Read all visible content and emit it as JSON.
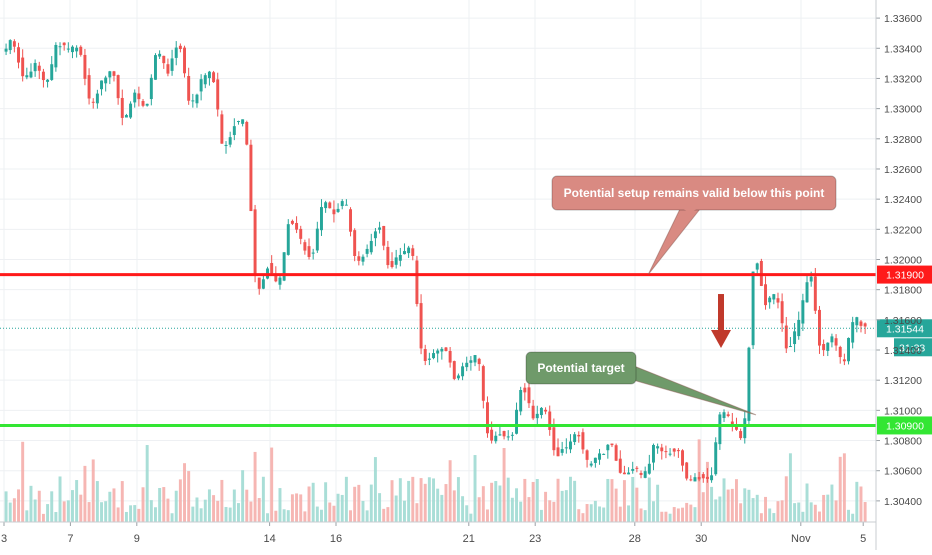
{
  "chart_data": {
    "type": "candlestick",
    "title": "",
    "xlabel": "",
    "ylabel": "",
    "ylim": [
      1.3026,
      1.3372
    ],
    "grid": true,
    "price_axis_side": "right",
    "y_ticks": [
      "1.33600",
      "1.33400",
      "1.33200",
      "1.33000",
      "1.32800",
      "1.32600",
      "1.32400",
      "1.32200",
      "1.32000",
      "1.31800",
      "1.31600",
      "1.31400",
      "1.31200",
      "1.31000",
      "1.30800",
      "1.30600",
      "1.30400"
    ],
    "x_ticks": [
      "3",
      "7",
      "9",
      "14",
      "16",
      "21",
      "23",
      "28",
      "30",
      "Nov",
      "5"
    ],
    "colors": {
      "up": "#26a69a",
      "down": "#ef5350",
      "up_volume": "#9ad8d0",
      "down_volume": "#f4a9a6",
      "resistance": "#ff1a1a",
      "support": "#33e633",
      "setup_note": "#d98a82",
      "target_note": "#6f9a6a",
      "arrow": "#c0392b",
      "last_price": "#26a69a"
    },
    "levels": [
      {
        "price": 1.319,
        "label": "1.31900",
        "color": "#ff1a1a"
      },
      {
        "price": 1.309,
        "label": "1.30900",
        "color": "#33e633"
      }
    ],
    "last_price": {
      "price": 1.31544,
      "label": "1.31544",
      "countdown": "31:33"
    },
    "annotations": [
      {
        "text": "Potential setup remains valid below this point",
        "pointer": {
          "date_index": 16,
          "price": 1.319
        }
      },
      {
        "text": "Potential target",
        "pointer": {
          "date_index": 22.5,
          "price": 1.3097
        }
      }
    ],
    "down_arrow": {
      "date_index": 21.9,
      "price": 1.3138
    },
    "days": [
      {
        "label": "3",
        "open": 1.3336,
        "high": 1.3346,
        "low": 1.3318,
        "close": 1.333
      },
      {
        "label": "",
        "open": 1.333,
        "high": 1.3344,
        "low": 1.3314,
        "close": 1.3338
      },
      {
        "label": "7",
        "open": 1.3338,
        "high": 1.3342,
        "low": 1.33,
        "close": 1.3318
      },
      {
        "label": "",
        "open": 1.3318,
        "high": 1.3325,
        "low": 1.3289,
        "close": 1.331
      },
      {
        "label": "9",
        "open": 1.331,
        "high": 1.334,
        "low": 1.33,
        "close": 1.3325
      },
      {
        "label": "",
        "open": 1.3325,
        "high": 1.3346,
        "low": 1.33,
        "close": 1.3318
      },
      {
        "label": "",
        "open": 1.3318,
        "high": 1.3325,
        "low": 1.327,
        "close": 1.329
      },
      {
        "label": "",
        "open": 1.329,
        "high": 1.3292,
        "low": 1.3175,
        "close": 1.3196
      },
      {
        "label": "14",
        "open": 1.3196,
        "high": 1.323,
        "low": 1.318,
        "close": 1.3212
      },
      {
        "label": "",
        "open": 1.3212,
        "high": 1.324,
        "low": 1.32,
        "close": 1.323
      },
      {
        "label": "16",
        "open": 1.323,
        "high": 1.324,
        "low": 1.3196,
        "close": 1.3206
      },
      {
        "label": "",
        "open": 1.3206,
        "high": 1.3225,
        "low": 1.3194,
        "close": 1.3203
      },
      {
        "label": "",
        "open": 1.3203,
        "high": 1.3211,
        "low": 1.313,
        "close": 1.3136
      },
      {
        "label": "",
        "open": 1.3136,
        "high": 1.3142,
        "low": 1.312,
        "close": 1.3132
      },
      {
        "label": "21",
        "open": 1.3132,
        "high": 1.3136,
        "low": 1.3078,
        "close": 1.3085
      },
      {
        "label": "",
        "open": 1.3085,
        "high": 1.312,
        "low": 1.308,
        "close": 1.3095
      },
      {
        "label": "23",
        "open": 1.3095,
        "high": 1.3104,
        "low": 1.307,
        "close": 1.3075
      },
      {
        "label": "",
        "open": 1.3075,
        "high": 1.3088,
        "low": 1.3062,
        "close": 1.307
      },
      {
        "label": "",
        "open": 1.307,
        "high": 1.3078,
        "low": 1.3058,
        "close": 1.3062
      },
      {
        "label": "28",
        "open": 1.3062,
        "high": 1.3078,
        "low": 1.3055,
        "close": 1.3072
      },
      {
        "label": "",
        "open": 1.3072,
        "high": 1.3075,
        "low": 1.3053,
        "close": 1.3056
      },
      {
        "label": "30",
        "open": 1.3056,
        "high": 1.3102,
        "low": 1.3052,
        "close": 1.309
      },
      {
        "label": "",
        "open": 1.309,
        "high": 1.3208,
        "low": 1.3078,
        "close": 1.317
      },
      {
        "label": "",
        "open": 1.317,
        "high": 1.3178,
        "low": 1.3138,
        "close": 1.3158
      },
      {
        "label": "Nov",
        "open": 1.3158,
        "high": 1.3196,
        "low": 1.3136,
        "close": 1.3148
      },
      {
        "label": "",
        "open": 1.3148,
        "high": 1.3162,
        "low": 1.313,
        "close": 1.3154
      }
    ]
  }
}
